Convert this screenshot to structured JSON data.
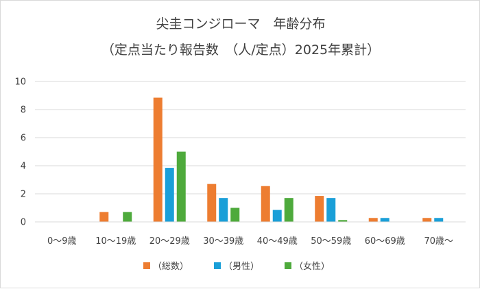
{
  "chart_data": {
    "type": "bar",
    "title": [
      "尖圭コンジローマ　年齢分布",
      "（定点当たり報告数　（人/定点）2025年累計）"
    ],
    "xlabel": "",
    "ylabel": "",
    "categories": [
      "0～9歳",
      "10～19歳",
      "20～29歳",
      "30～39歳",
      "40～49歳",
      "50～59歳",
      "60～69歳",
      "70歳～"
    ],
    "series": [
      {
        "name": "（総数）",
        "color": "#ed7d31",
        "values": [
          0,
          0.7,
          8.85,
          2.7,
          2.55,
          1.85,
          0.28,
          0.28
        ]
      },
      {
        "name": "（男性）",
        "color": "#1a9fd8",
        "values": [
          0,
          0,
          3.85,
          1.7,
          0.85,
          1.7,
          0.28,
          0.28
        ]
      },
      {
        "name": "（女性）",
        "color": "#4eaa3c",
        "values": [
          0,
          0.7,
          5.0,
          1.0,
          1.7,
          0.13,
          0,
          0
        ]
      }
    ],
    "ylim": [
      0,
      10
    ],
    "yticks": [
      0,
      2,
      4,
      6,
      8,
      10
    ],
    "grid": true,
    "legend": "bottom"
  }
}
